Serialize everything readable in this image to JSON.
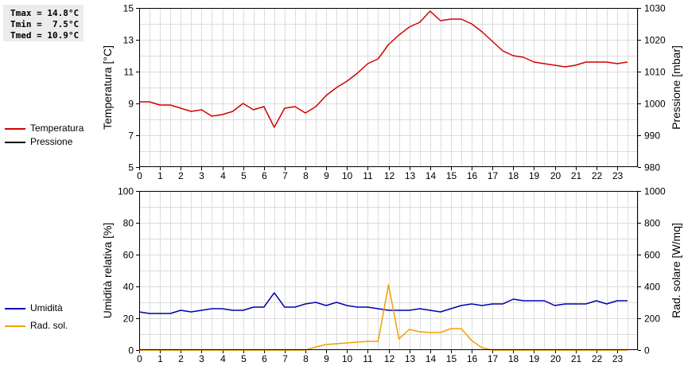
{
  "stats": {
    "tmax": "Tmax = 14.8°C",
    "tmin": "Tmin =  7.5°C",
    "tmed": "Tmed = 10.9°C"
  },
  "legend_top": [
    {
      "label": "Temperatura",
      "color": "#d40000"
    },
    {
      "label": "Pressione",
      "color": "#000000"
    }
  ],
  "legend_bottom": [
    {
      "label": "Umidità",
      "color": "#0000b0"
    },
    {
      "label": "Rad. sol.",
      "color": "#f0a000"
    }
  ],
  "chart_data": [
    {
      "type": "line",
      "xlim": [
        0,
        24
      ],
      "x_ticks": [
        "0",
        "1",
        "2",
        "3",
        "4",
        "5",
        "6",
        "7",
        "8",
        "9",
        "10",
        "11",
        "12",
        "13",
        "14",
        "15",
        "16",
        "17",
        "18",
        "19",
        "20",
        "21",
        "22",
        "23"
      ],
      "ylabel": "Temperatura [°C]",
      "ylim": [
        5,
        15
      ],
      "y_ticks": [
        "5",
        "7",
        "9",
        "11",
        "13",
        "15"
      ],
      "y2label": "Pressione [mbar]",
      "y2lim": [
        980,
        1030
      ],
      "y2_ticks": [
        "980",
        "990",
        "1000",
        "1010",
        "1020",
        "1030"
      ],
      "grid": true,
      "series": [
        {
          "name": "Temperatura",
          "axis": "left",
          "color": "#d40000",
          "x": [
            0,
            0.5,
            1,
            1.5,
            2,
            2.5,
            3,
            3.5,
            4,
            4.5,
            5,
            5.5,
            6,
            6.5,
            7,
            7.5,
            8,
            8.5,
            9,
            9.5,
            10,
            10.5,
            11,
            11.5,
            12,
            12.5,
            13,
            13.5,
            14,
            14.5,
            15,
            15.5,
            16,
            16.5,
            17,
            17.5,
            18,
            18.5,
            19,
            19.5,
            20,
            20.5,
            21,
            21.5,
            22,
            22.5,
            23,
            23.5
          ],
          "y": [
            9.1,
            9.1,
            8.9,
            8.9,
            8.7,
            8.5,
            8.6,
            8.2,
            8.3,
            8.5,
            9.0,
            8.6,
            8.8,
            7.5,
            8.7,
            8.8,
            8.4,
            8.8,
            9.5,
            10.0,
            10.4,
            10.9,
            11.5,
            11.8,
            12.7,
            13.3,
            13.8,
            14.1,
            14.8,
            14.2,
            14.3,
            14.3,
            14.0,
            13.5,
            12.9,
            12.3,
            12.0,
            11.9,
            11.6,
            11.5,
            11.4,
            11.3,
            11.4,
            11.6,
            11.6,
            11.6,
            11.5,
            11.6
          ]
        },
        {
          "name": "Pressione",
          "axis": "right",
          "color": "#000000",
          "x": [],
          "y": []
        }
      ]
    },
    {
      "type": "line",
      "xlim": [
        0,
        24
      ],
      "x_ticks": [
        "0",
        "1",
        "2",
        "3",
        "4",
        "5",
        "6",
        "7",
        "8",
        "9",
        "10",
        "11",
        "12",
        "13",
        "14",
        "15",
        "16",
        "17",
        "18",
        "19",
        "20",
        "21",
        "22",
        "23"
      ],
      "ylabel": "Umidità relativa [%]",
      "ylim": [
        0,
        100
      ],
      "y_ticks": [
        "0",
        "20",
        "40",
        "60",
        "80",
        "100"
      ],
      "y2label": "Rad. solare [W/mq]",
      "y2lim": [
        0,
        1000
      ],
      "y2_ticks": [
        "0",
        "200",
        "400",
        "600",
        "800",
        "1000"
      ],
      "grid": true,
      "series": [
        {
          "name": "Umidità",
          "axis": "left",
          "color": "#0000b0",
          "x": [
            0,
            0.5,
            1,
            1.5,
            2,
            2.5,
            3,
            3.5,
            4,
            4.5,
            5,
            5.5,
            6,
            6.5,
            7,
            7.5,
            8,
            8.5,
            9,
            9.5,
            10,
            10.5,
            11,
            11.5,
            12,
            12.5,
            13,
            13.5,
            14,
            14.5,
            15,
            15.5,
            16,
            16.5,
            17,
            17.5,
            18,
            18.5,
            19,
            19.5,
            20,
            20.5,
            21,
            21.5,
            22,
            22.5,
            23,
            23.5
          ],
          "y": [
            24,
            23,
            23,
            23,
            25,
            24,
            25,
            26,
            26,
            25,
            25,
            27,
            27,
            36,
            27,
            27,
            29,
            30,
            28,
            30,
            28,
            27,
            27,
            26,
            25,
            25,
            25,
            26,
            25,
            24,
            26,
            28,
            29,
            28,
            29,
            29,
            32,
            31,
            31,
            31,
            28,
            29,
            29,
            29,
            31,
            29,
            31,
            31
          ]
        },
        {
          "name": "Rad. sol.",
          "axis": "right",
          "color": "#f0a000",
          "x": [
            0,
            0.5,
            1,
            1.5,
            2,
            2.5,
            3,
            3.5,
            4,
            4.5,
            5,
            5.5,
            6,
            6.5,
            7,
            7.5,
            8,
            8.5,
            9,
            9.5,
            10,
            10.5,
            11,
            11.5,
            12,
            12.5,
            13,
            13.5,
            14,
            14.5,
            15,
            15.5,
            16,
            16.5,
            17,
            17.5,
            18,
            18.5,
            19,
            19.5,
            20,
            20.5,
            21,
            21.5,
            22,
            22.5,
            23,
            23.5
          ],
          "y": [
            0,
            0,
            0,
            0,
            0,
            0,
            0,
            0,
            0,
            0,
            0,
            0,
            0,
            0,
            0,
            0,
            0,
            20,
            35,
            40,
            45,
            50,
            55,
            55,
            410,
            70,
            130,
            115,
            110,
            110,
            135,
            135,
            60,
            15,
            0,
            0,
            0,
            0,
            0,
            0,
            0,
            0,
            0,
            0,
            0,
            0,
            0,
            0
          ]
        }
      ]
    }
  ]
}
